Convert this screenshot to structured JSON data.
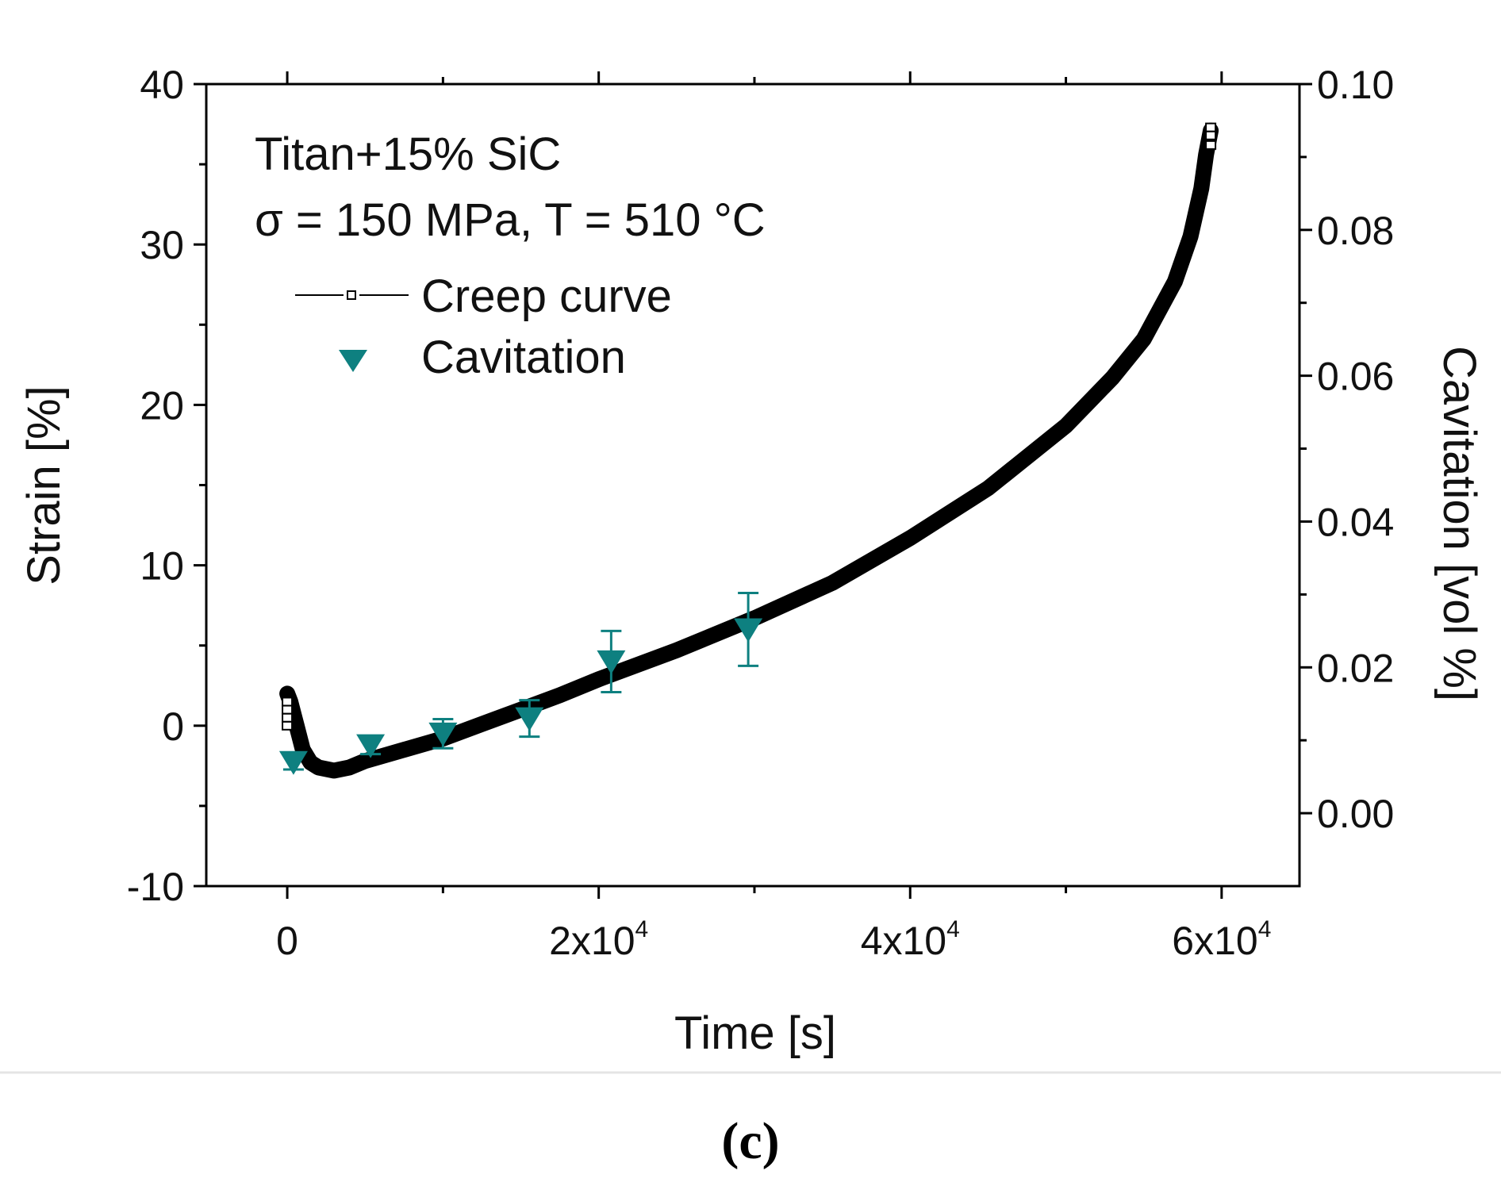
{
  "chart_data": {
    "type": "scatter",
    "title": "",
    "panel_label": "(c)",
    "annotation": [
      "Titan+15% SiC",
      "σ = 150 MPa, T = 510 °C"
    ],
    "xlabel": "Time [s]",
    "ylabel": "Strain [%]",
    "y2label": "Cavitation [vol %]",
    "xlim": [
      -5200,
      65000
    ],
    "ylim": [
      -10,
      40
    ],
    "y2lim": [
      -0.01,
      0.1
    ],
    "x_ticks": [
      0,
      20000,
      40000,
      60000
    ],
    "x_tick_labels": [
      {
        "base": "0",
        "exp": ""
      },
      {
        "base": "2x10",
        "exp": "4"
      },
      {
        "base": "4x10",
        "exp": "4"
      },
      {
        "base": "6x10",
        "exp": "4"
      }
    ],
    "y_ticks": [
      -10,
      0,
      10,
      20,
      30,
      40
    ],
    "y_tick_labels": [
      "-10",
      "0",
      "10",
      "20",
      "30",
      "40"
    ],
    "y2_ticks": [
      0.0,
      0.02,
      0.04,
      0.06,
      0.08,
      0.1
    ],
    "y2_tick_labels": [
      "0.00",
      "0.02",
      "0.04",
      "0.06",
      "0.08",
      "0.10"
    ],
    "legend": {
      "placement": "top-left",
      "entries": [
        "Creep curve",
        "Cavitation"
      ]
    },
    "grid": false,
    "series": [
      {
        "name": "Creep curve",
        "axis": "left",
        "color": "#000000",
        "marker": "open-square",
        "x": [
          0,
          200,
          600,
          1000,
          1500,
          2000,
          3000,
          4000,
          5000,
          7500,
          10000,
          12500,
          15000,
          17500,
          20000,
          25000,
          30000,
          35000,
          40000,
          45000,
          50000,
          53000,
          55000,
          57000,
          58000,
          58700,
          59000,
          59300
        ],
        "y": [
          2.0,
          1.5,
          0.0,
          -1.5,
          -2.3,
          -2.6,
          -2.8,
          -2.6,
          -2.2,
          -1.5,
          -0.8,
          0.1,
          1.0,
          1.9,
          2.9,
          4.7,
          6.7,
          8.9,
          11.7,
          14.8,
          18.7,
          21.7,
          24.1,
          27.7,
          30.5,
          33.5,
          35.6,
          37.1
        ]
      },
      {
        "name": "Cavitation",
        "axis": "right",
        "color": "#0e8080",
        "marker": "down-triangle",
        "x": [
          400,
          5350,
          10000,
          15550,
          20800,
          29600
        ],
        "y": [
          0.007,
          0.0093,
          0.0109,
          0.013,
          0.0208,
          0.0252
        ],
        "err": [
          0.001,
          0.0012,
          0.002,
          0.0025,
          0.0042,
          0.005
        ]
      }
    ]
  }
}
